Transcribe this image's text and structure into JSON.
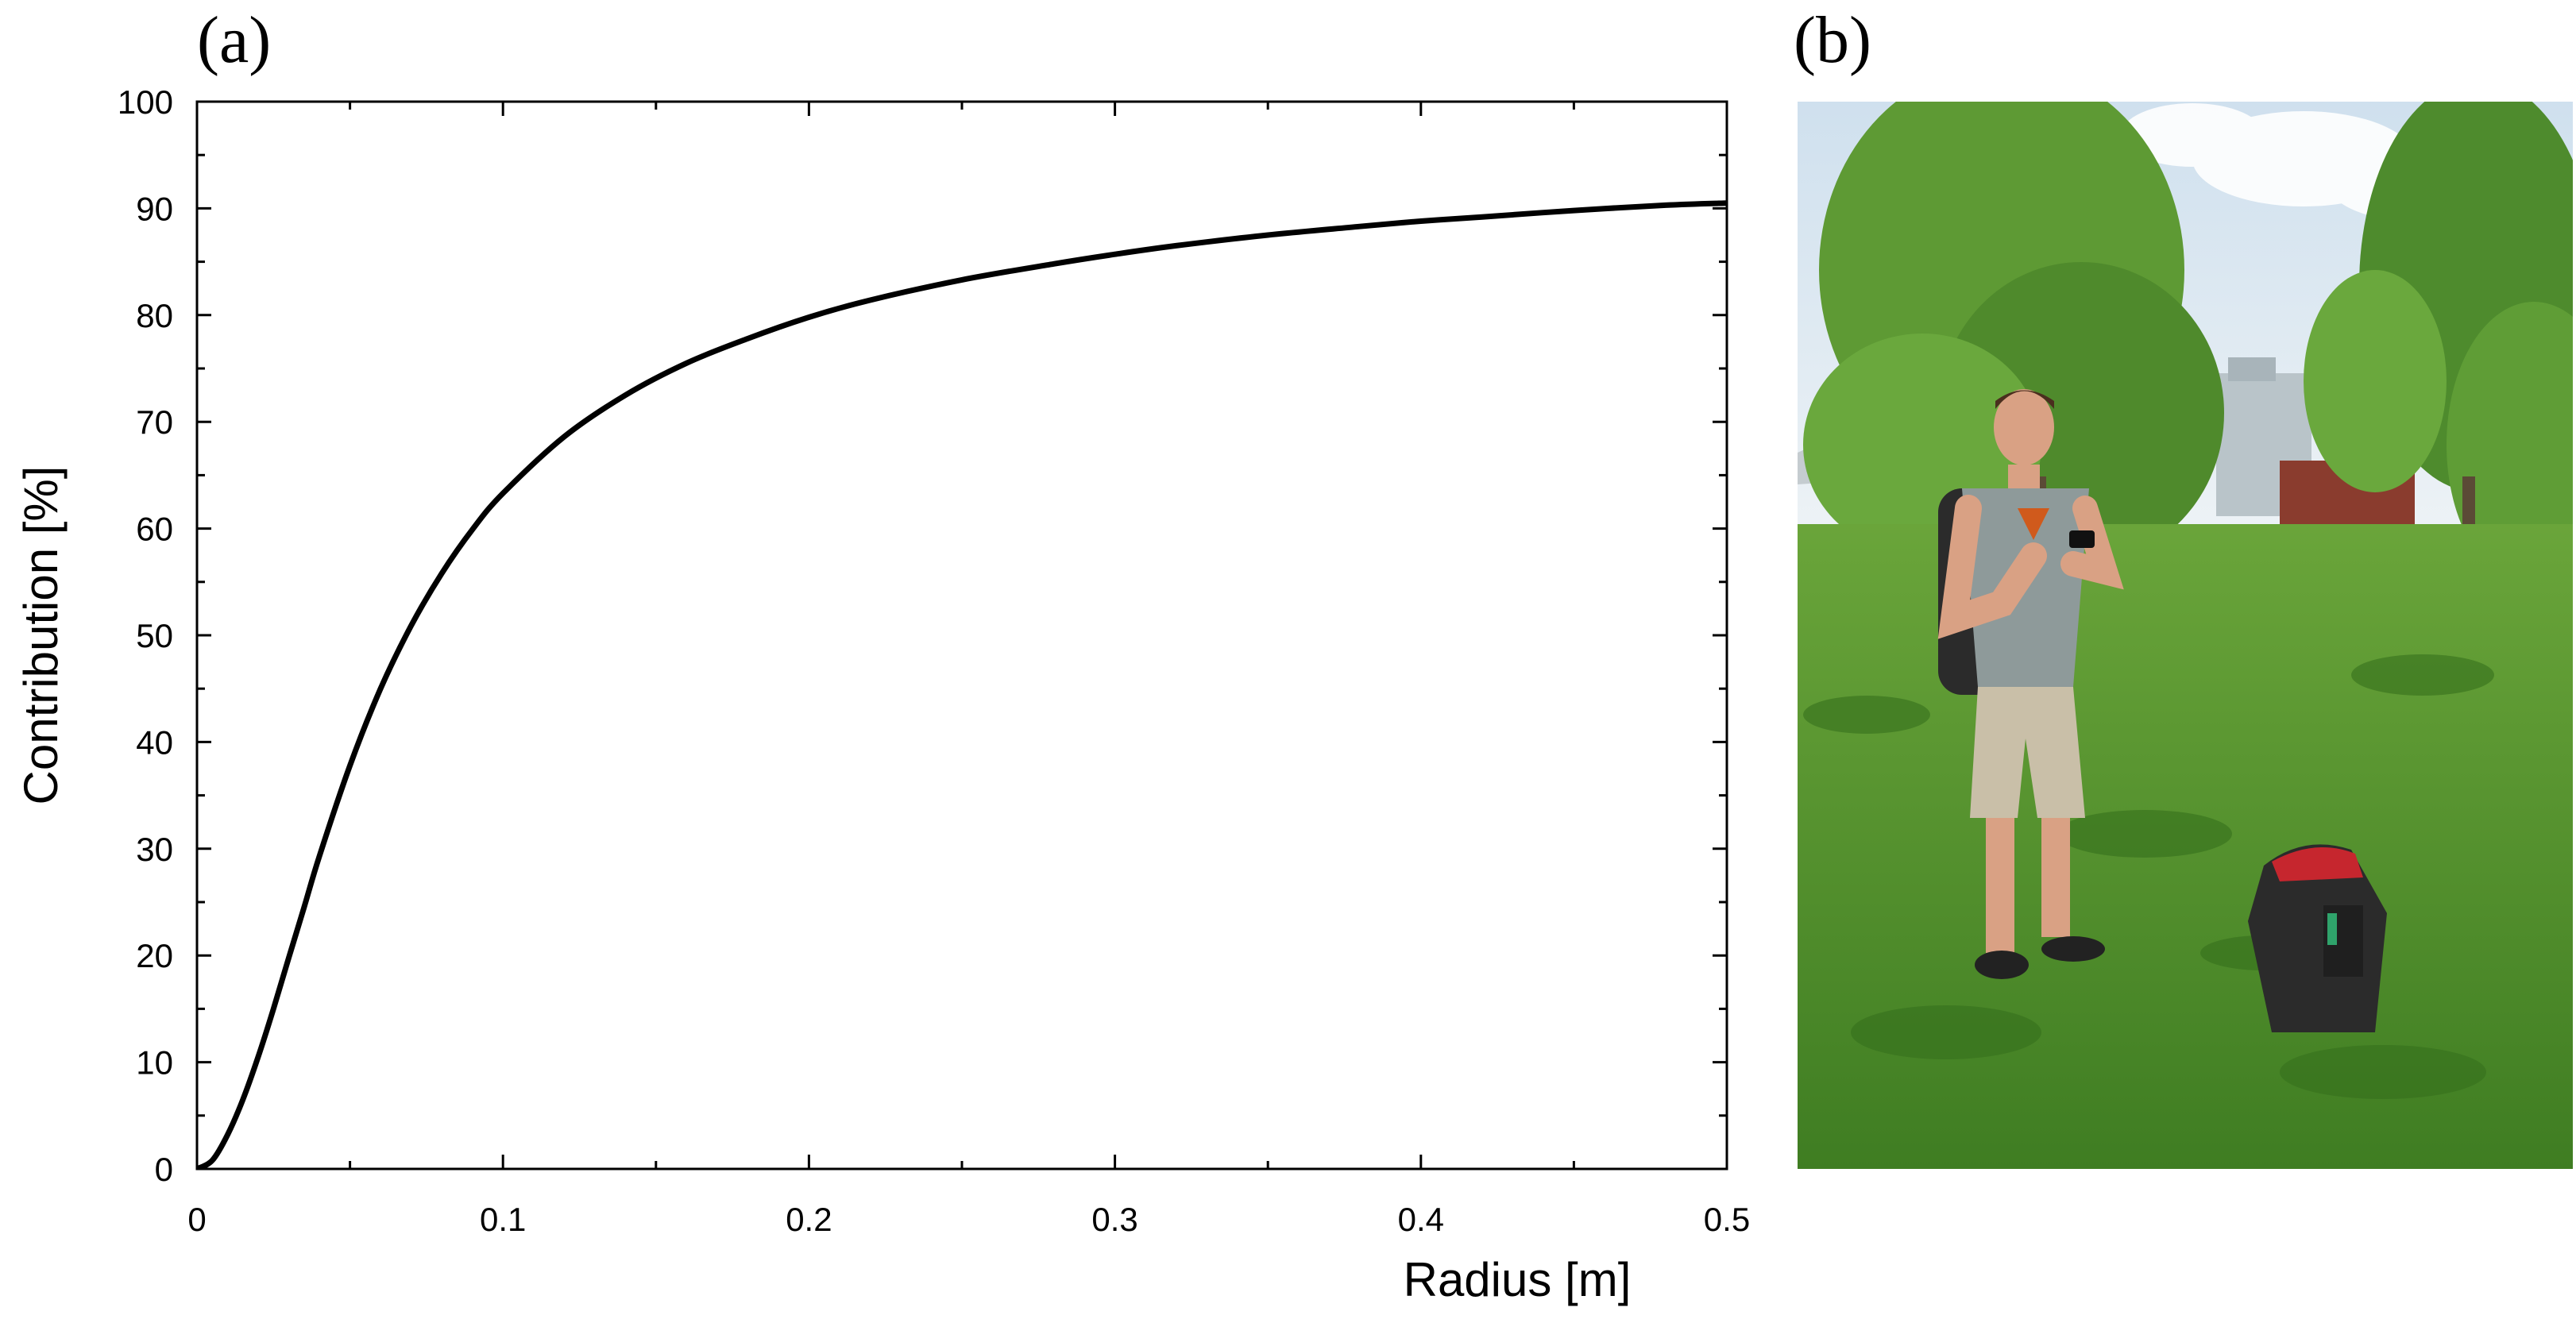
{
  "panel_a": {
    "label": "(a)"
  },
  "panel_b": {
    "label": "(b)"
  },
  "chart_data": {
    "type": "line",
    "xlabel": "Radius [m]",
    "ylabel": "Contribution [%]",
    "xlim": [
      0,
      0.5
    ],
    "ylim": [
      0,
      100
    ],
    "grid": false,
    "legend": "none",
    "x_ticks": [
      {
        "value": 0,
        "label": "0"
      },
      {
        "value": 0.1,
        "label": "0.1"
      },
      {
        "value": 0.2,
        "label": "0.2"
      },
      {
        "value": 0.3,
        "label": "0.3"
      },
      {
        "value": 0.4,
        "label": "0.4"
      },
      {
        "value": 0.5,
        "label": "0.5"
      }
    ],
    "y_ticks": [
      {
        "value": 0,
        "label": "0"
      },
      {
        "value": 10,
        "label": "10"
      },
      {
        "value": 20,
        "label": "20"
      },
      {
        "value": 30,
        "label": "30"
      },
      {
        "value": 40,
        "label": "40"
      },
      {
        "value": 50,
        "label": "50"
      },
      {
        "value": 60,
        "label": "60"
      },
      {
        "value": 70,
        "label": "70"
      },
      {
        "value": 80,
        "label": "80"
      },
      {
        "value": 90,
        "label": "90"
      },
      {
        "value": 100,
        "label": "100"
      }
    ],
    "series": [
      {
        "color": "#000000",
        "x": [
          0,
          0.005,
          0.01,
          0.015,
          0.02,
          0.025,
          0.03,
          0.035,
          0.04,
          0.05,
          0.06,
          0.07,
          0.08,
          0.09,
          0.1,
          0.12,
          0.14,
          0.16,
          0.18,
          0.2,
          0.22,
          0.25,
          0.28,
          0.3,
          0.32,
          0.35,
          0.38,
          0.4,
          0.42,
          0.45,
          0.48,
          0.5
        ],
        "y": [
          0,
          0.8,
          3.2,
          6.5,
          10.5,
          15,
          19.8,
          24.5,
          29.3,
          37.8,
          45,
          50.9,
          55.8,
          59.9,
          63.3,
          68.6,
          72.5,
          75.5,
          77.8,
          79.8,
          81.4,
          83.3,
          84.8,
          85.7,
          86.5,
          87.5,
          88.3,
          88.8,
          89.2,
          89.8,
          90.3,
          90.5
        ]
      }
    ]
  },
  "photo": {
    "colors": {
      "sky": "#dfe9f2",
      "tree": "#5e9a34",
      "grass": "#4f8f2a",
      "shirt": "#8e9a9a",
      "shorts": "#c9bfa8",
      "skin": "#d9a184",
      "backpack": "#2b2b2b",
      "backpack_accent": "#c6262e",
      "building": "#b9c4c9",
      "sculpture": "#8a3c2e"
    }
  }
}
